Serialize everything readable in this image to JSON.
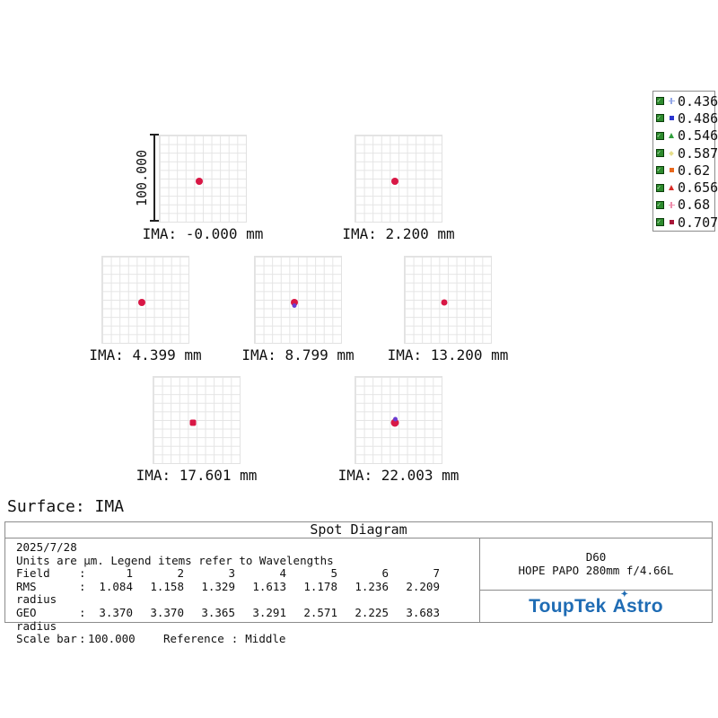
{
  "legend": {
    "checkbox_icon": "checkbox-checked-icon",
    "entries": [
      {
        "label": "0.436",
        "marker": "cross",
        "color": "#93a7e8"
      },
      {
        "label": "0.486",
        "marker": "square",
        "color": "#2b35cf"
      },
      {
        "label": "0.546",
        "marker": "triangle",
        "color": "#2f9e3a"
      },
      {
        "label": "0.587",
        "marker": "diamond",
        "color": "#e6de8a"
      },
      {
        "label": "0.62",
        "marker": "square",
        "color": "#e8681c"
      },
      {
        "label": "0.656",
        "marker": "triangle",
        "color": "#d92b26"
      },
      {
        "label": "0.68",
        "marker": "cross",
        "color": "#ee8cab"
      },
      {
        "label": "0.707",
        "marker": "square",
        "color": "#a81638"
      }
    ]
  },
  "scale_bar": {
    "label": "100.000"
  },
  "panels": [
    {
      "label": "IMA: -0.000 mm",
      "spot": {
        "size": 8,
        "shape": "round",
        "fringe": "none"
      }
    },
    {
      "label": "IMA: 2.200 mm",
      "spot": {
        "size": 8,
        "shape": "round",
        "fringe": "none"
      }
    },
    {
      "label": "IMA: 4.399 mm",
      "spot": {
        "size": 8,
        "shape": "round",
        "fringe": "none"
      }
    },
    {
      "label": "IMA: 8.799 mm",
      "spot": {
        "size": 8,
        "shape": "round",
        "fringe": "bottom"
      }
    },
    {
      "label": "IMA: 13.200 mm",
      "spot": {
        "size": 7,
        "shape": "round",
        "fringe": "none"
      }
    },
    {
      "label": "IMA: 17.601 mm",
      "spot": {
        "size": 7,
        "shape": "square",
        "fringe": "none"
      }
    },
    {
      "label": "IMA: 22.003 mm",
      "spot": {
        "size": 9,
        "shape": "round",
        "fringe": "top"
      }
    }
  ],
  "surface_label": "Surface: IMA",
  "report": {
    "title": "Spot Diagram",
    "date": "2025/7/28",
    "units_note": "Units are µm. Legend items refer to Wavelengths",
    "colon": ":",
    "rows": [
      {
        "label": "Field",
        "values": [
          "1",
          "2",
          "3",
          "4",
          "5",
          "6",
          "7"
        ]
      },
      {
        "label": "RMS radius",
        "values": [
          "1.084",
          "1.158",
          "1.329",
          "1.613",
          "1.178",
          "1.236",
          "2.209"
        ]
      },
      {
        "label": "GEO radius",
        "values": [
          "3.370",
          "3.370",
          "3.365",
          "3.291",
          "2.571",
          "2.225",
          "3.683"
        ]
      }
    ],
    "scale_bar_label": "Scale bar",
    "scale_bar_value": "100.000",
    "reference_label": "Reference",
    "reference_value": "Middle",
    "system": {
      "line1": "D60",
      "line2": "HOPE PAPO 280mm f/4.66L"
    },
    "logo": {
      "text1": "ToupTek",
      "astro_initial": "A",
      "astro_rest": "stro",
      "star": "✦",
      "color": "#1f6cb4"
    }
  },
  "chart_data": {
    "type": "scatter",
    "title": "Spot Diagram",
    "surface": "IMA",
    "date": "2025/7/28",
    "units": "µm",
    "legend_position": "top-right",
    "grid": true,
    "wavelengths_um": [
      0.436,
      0.486,
      0.546,
      0.587,
      0.62,
      0.656,
      0.68,
      0.707
    ],
    "scale_bar_um": 100.0,
    "reference": "Middle",
    "fields": [
      {
        "field": 1,
        "ima_mm": -0.0,
        "rms_radius_um": 1.084,
        "geo_radius_um": 3.37
      },
      {
        "field": 2,
        "ima_mm": 2.2,
        "rms_radius_um": 1.158,
        "geo_radius_um": 3.37
      },
      {
        "field": 3,
        "ima_mm": 4.399,
        "rms_radius_um": 1.329,
        "geo_radius_um": 3.365
      },
      {
        "field": 4,
        "ima_mm": 8.799,
        "rms_radius_um": 1.613,
        "geo_radius_um": 3.291
      },
      {
        "field": 5,
        "ima_mm": 13.2,
        "rms_radius_um": 1.178,
        "geo_radius_um": 2.571
      },
      {
        "field": 6,
        "ima_mm": 17.601,
        "rms_radius_um": 1.236,
        "geo_radius_um": 2.225
      },
      {
        "field": 7,
        "ima_mm": 22.003,
        "rms_radius_um": 2.209,
        "geo_radius_um": 3.683
      }
    ]
  }
}
